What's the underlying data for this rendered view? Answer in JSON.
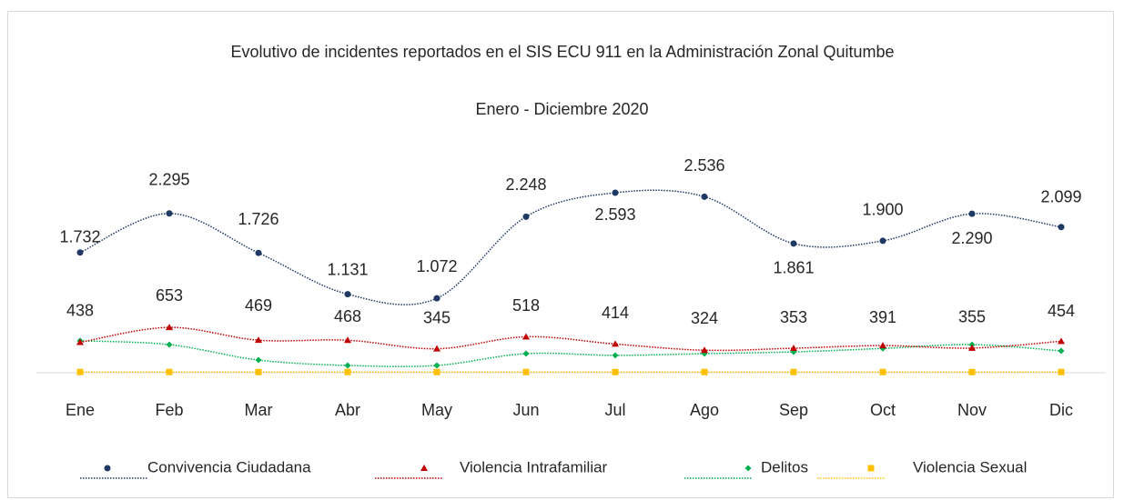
{
  "chart_data": {
    "type": "line",
    "title": "Evolutivo de incidentes reportados en el SIS ECU 911 en la Administración Zonal Quitumbe",
    "subtitle": "Enero - Diciembre 2020",
    "categories": [
      "Ene",
      "Feb",
      "Mar",
      "Abr",
      "May",
      "Jun",
      "Jul",
      "Ago",
      "Sep",
      "Oct",
      "Nov",
      "Dic"
    ],
    "series": [
      {
        "name": "Convivencia Ciudadana",
        "color": "#1f3864",
        "marker": "circle",
        "values": [
          1732,
          2295,
          1726,
          1131,
          1072,
          2248,
          2593,
          2536,
          1861,
          1900,
          2290,
          2099
        ],
        "value_labels": [
          "1.732",
          "2.295",
          "1.726",
          "1.131",
          "1.072",
          "2.248",
          "2.593",
          "2.536",
          "1.861",
          "1.900",
          "2.290",
          "2.099"
        ]
      },
      {
        "name": "Violencia Intrafamiliar",
        "color": "#c00000",
        "marker": "triangle",
        "values": [
          438,
          653,
          469,
          468,
          345,
          518,
          414,
          324,
          353,
          391,
          355,
          454
        ]
      },
      {
        "name": "Delitos",
        "color": "#00b050",
        "marker": "diamond",
        "values": [
          460,
          405,
          183,
          105,
          105,
          275,
          250,
          275,
          300,
          350,
          405,
          315
        ]
      },
      {
        "name": "Violencia Sexual",
        "color": "#ffc000",
        "marker": "square",
        "values": [
          10,
          10,
          10,
          10,
          10,
          10,
          10,
          10,
          10,
          10,
          10,
          10
        ]
      }
    ]
  }
}
